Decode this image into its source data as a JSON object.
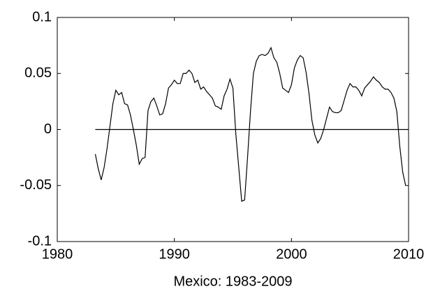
{
  "chart_data": {
    "type": "line",
    "xlabel": "Mexico: 1983-2009",
    "xlim": [
      1980,
      2010
    ],
    "xticks": [
      1980,
      1990,
      2000,
      2010
    ],
    "ylim": [
      -0.1,
      0.1
    ],
    "yticks": [
      -0.1,
      -0.05,
      0,
      0.05,
      0.1
    ],
    "series": [
      {
        "color": "#000000",
        "x": [
          1983.25,
          1983.5,
          1983.75,
          1984,
          1984.25,
          1984.5,
          1984.75,
          1985,
          1985.25,
          1985.5,
          1985.75,
          1986,
          1986.25,
          1986.5,
          1986.75,
          1987,
          1987.25,
          1987.5,
          1987.75,
          1988,
          1988.25,
          1988.5,
          1988.75,
          1989,
          1989.25,
          1989.5,
          1989.75,
          1990,
          1990.25,
          1990.5,
          1990.75,
          1991,
          1991.25,
          1991.5,
          1991.75,
          1992,
          1992.25,
          1992.5,
          1992.75,
          1993,
          1993.25,
          1993.5,
          1993.75,
          1994,
          1994.25,
          1994.5,
          1994.75,
          1995,
          1995.25,
          1995.5,
          1995.75,
          1996,
          1996.25,
          1996.5,
          1996.75,
          1997,
          1997.25,
          1997.5,
          1997.75,
          1998,
          1998.25,
          1998.5,
          1998.75,
          1999,
          1999.25,
          1999.5,
          1999.75,
          2000,
          2000.25,
          2000.5,
          2000.75,
          2001,
          2001.25,
          2001.5,
          2001.75,
          2002,
          2002.25,
          2002.5,
          2002.75,
          2003,
          2003.25,
          2003.5,
          2003.75,
          2004,
          2004.25,
          2004.5,
          2004.75,
          2005,
          2005.25,
          2005.5,
          2005.75,
          2006,
          2006.25,
          2006.5,
          2006.75,
          2007,
          2007.25,
          2007.5,
          2007.75,
          2008,
          2008.25,
          2008.5,
          2008.75,
          2009,
          2009.25,
          2009.5,
          2009.75
        ],
        "values": [
          -0.022,
          -0.035,
          -0.045,
          -0.034,
          -0.017,
          0.003,
          0.023,
          0.035,
          0.031,
          0.033,
          0.023,
          0.022,
          0.013,
          0,
          -0.014,
          -0.031,
          -0.026,
          -0.025,
          0.017,
          0.025,
          0.028,
          0.021,
          0.013,
          0.014,
          0.023,
          0.037,
          0.04,
          0.044,
          0.041,
          0.041,
          0.05,
          0.05,
          0.053,
          0.05,
          0.042,
          0.044,
          0.036,
          0.038,
          0.034,
          0.031,
          0.028,
          0.021,
          0.02,
          0.018,
          0.03,
          0.036,
          0.045,
          0.037,
          -0.004,
          -0.034,
          -0.064,
          -0.063,
          -0.025,
          0.016,
          0.05,
          0.061,
          0.066,
          0.067,
          0.066,
          0.068,
          0.073,
          0.064,
          0.06,
          0.05,
          0.037,
          0.035,
          0.033,
          0.04,
          0.055,
          0.062,
          0.066,
          0.064,
          0.051,
          0.032,
          0.008,
          -0.005,
          -0.012,
          -0.008,
          0,
          0.01,
          0.02,
          0.016,
          0.015,
          0.015,
          0.017,
          0.026,
          0.035,
          0.041,
          0.038,
          0.038,
          0.035,
          0.03,
          0.037,
          0.04,
          0.043,
          0.047,
          0.044,
          0.042,
          0.038,
          0.036,
          0.036,
          0.033,
          0.028,
          0.016,
          -0.015,
          -0.038,
          -0.05
        ]
      },
      {
        "color": "#000000",
        "x": [
          1983.25,
          2010
        ],
        "values": [
          0,
          0
        ]
      }
    ]
  }
}
